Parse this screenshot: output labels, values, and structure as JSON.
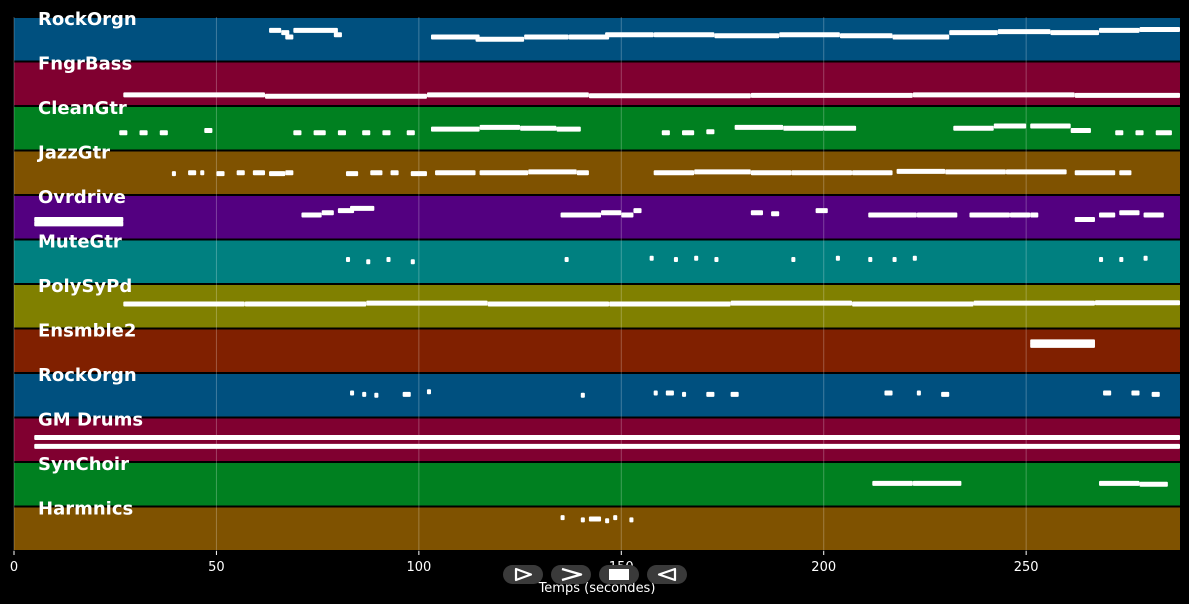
{
  "chart_data": {
    "type": "piano-roll",
    "xlabel": "Temps (secondes)",
    "xlim": [
      0,
      288
    ],
    "xticks": [
      0,
      50,
      100,
      150,
      200,
      250
    ],
    "grid": true,
    "tracks": [
      {
        "name": "RockOrgn",
        "color": "#00507f",
        "notes": [
          [
            63,
            3,
            0.3
          ],
          [
            66,
            2,
            0.35
          ],
          [
            67,
            2,
            0.45
          ],
          [
            69,
            11,
            0.3
          ],
          [
            79,
            2,
            0.4
          ],
          [
            103,
            12,
            0.45
          ],
          [
            114,
            12,
            0.5
          ],
          [
            126,
            11,
            0.45
          ],
          [
            137,
            6,
            0.45
          ],
          [
            138,
            9,
            0.45
          ],
          [
            146,
            12,
            0.4
          ],
          [
            158,
            15,
            0.4
          ],
          [
            173,
            16,
            0.42
          ],
          [
            189,
            15,
            0.4
          ],
          [
            204,
            13,
            0.42
          ],
          [
            217,
            14,
            0.45
          ],
          [
            231,
            12,
            0.35
          ],
          [
            243,
            13,
            0.33
          ],
          [
            256,
            12,
            0.35
          ],
          [
            268,
            10,
            0.3
          ],
          [
            278,
            10,
            0.28
          ]
        ]
      },
      {
        "name": "FngrBass",
        "color": "#800030",
        "notes": [
          [
            27,
            35,
            0.75
          ],
          [
            62,
            40,
            0.78
          ],
          [
            102,
            40,
            0.75
          ],
          [
            142,
            40,
            0.77
          ],
          [
            182,
            40,
            0.76
          ],
          [
            222,
            40,
            0.75
          ],
          [
            262,
            26,
            0.76
          ]
        ]
      },
      {
        "name": "CleanGtr",
        "color": "#008020",
        "notes": [
          [
            26,
            2,
            0.6
          ],
          [
            31,
            2,
            0.6
          ],
          [
            36,
            2,
            0.6
          ],
          [
            47,
            2,
            0.55
          ],
          [
            69,
            2,
            0.6
          ],
          [
            74,
            3,
            0.6
          ],
          [
            80,
            2,
            0.6
          ],
          [
            86,
            2,
            0.6
          ],
          [
            91,
            2,
            0.6
          ],
          [
            97,
            2,
            0.6
          ],
          [
            103,
            12,
            0.52
          ],
          [
            115,
            10,
            0.48
          ],
          [
            125,
            9,
            0.5
          ],
          [
            134,
            6,
            0.52
          ],
          [
            160,
            2,
            0.6
          ],
          [
            165,
            3,
            0.6
          ],
          [
            171,
            2,
            0.58
          ],
          [
            178,
            12,
            0.48
          ],
          [
            190,
            10,
            0.5
          ],
          [
            200,
            8,
            0.5
          ],
          [
            232,
            10,
            0.5
          ],
          [
            242,
            8,
            0.45
          ],
          [
            251,
            10,
            0.45
          ],
          [
            261,
            5,
            0.55
          ],
          [
            272,
            2,
            0.6
          ],
          [
            277,
            2,
            0.6
          ],
          [
            282,
            4,
            0.6
          ]
        ]
      },
      {
        "name": "JazzGtr",
        "color": "#7f5200",
        "notes": [
          [
            39,
            1,
            0.52
          ],
          [
            43,
            2,
            0.5
          ],
          [
            46,
            1,
            0.5
          ],
          [
            50,
            2,
            0.52
          ],
          [
            55,
            2,
            0.5
          ],
          [
            59,
            3,
            0.5
          ],
          [
            63,
            4,
            0.52
          ],
          [
            67,
            2,
            0.5
          ],
          [
            82,
            3,
            0.52
          ],
          [
            88,
            3,
            0.5
          ],
          [
            93,
            2,
            0.5
          ],
          [
            98,
            4,
            0.52
          ],
          [
            104,
            10,
            0.5
          ],
          [
            115,
            12,
            0.5
          ],
          [
            127,
            12,
            0.48
          ],
          [
            139,
            3,
            0.5
          ],
          [
            158,
            10,
            0.5
          ],
          [
            168,
            14,
            0.48
          ],
          [
            182,
            10,
            0.5
          ],
          [
            192,
            15,
            0.5
          ],
          [
            207,
            10,
            0.5
          ],
          [
            218,
            12,
            0.47
          ],
          [
            230,
            15,
            0.48
          ],
          [
            245,
            15,
            0.48
          ],
          [
            262,
            10,
            0.5
          ],
          [
            273,
            3,
            0.5
          ]
        ]
      },
      {
        "name": "Ovrdrive",
        "color": "#530080",
        "notes": [
          [
            5,
            22,
            0.55
          ],
          [
            5,
            22,
            0.65
          ],
          [
            71,
            5,
            0.45
          ],
          [
            76,
            3,
            0.4
          ],
          [
            80,
            4,
            0.35
          ],
          [
            83,
            6,
            0.3
          ],
          [
            135,
            10,
            0.45
          ],
          [
            145,
            5,
            0.4
          ],
          [
            150,
            3,
            0.45
          ],
          [
            153,
            2,
            0.35
          ],
          [
            182,
            3,
            0.4
          ],
          [
            187,
            2,
            0.42
          ],
          [
            198,
            3,
            0.35
          ],
          [
            211,
            12,
            0.45
          ],
          [
            223,
            10,
            0.45
          ],
          [
            236,
            10,
            0.45
          ],
          [
            246,
            5,
            0.45
          ],
          [
            251,
            2,
            0.45
          ],
          [
            262,
            5,
            0.55
          ],
          [
            268,
            4,
            0.45
          ],
          [
            273,
            5,
            0.4
          ],
          [
            279,
            5,
            0.45
          ]
        ]
      },
      {
        "name": "MuteGtr",
        "color": "#008080",
        "notes": [
          [
            82,
            1,
            0.45
          ],
          [
            87,
            1,
            0.5
          ],
          [
            92,
            1,
            0.45
          ],
          [
            98,
            1,
            0.5
          ],
          [
            136,
            1,
            0.45
          ],
          [
            157,
            1,
            0.42
          ],
          [
            163,
            1,
            0.45
          ],
          [
            168,
            1,
            0.42
          ],
          [
            173,
            1,
            0.45
          ],
          [
            192,
            1,
            0.45
          ],
          [
            203,
            1,
            0.42
          ],
          [
            211,
            1,
            0.45
          ],
          [
            217,
            1,
            0.45
          ],
          [
            222,
            1,
            0.42
          ],
          [
            268,
            1,
            0.45
          ],
          [
            273,
            1,
            0.45
          ],
          [
            279,
            1,
            0.42
          ]
        ]
      },
      {
        "name": "PolySyPd",
        "color": "#808000",
        "notes": [
          [
            27,
            30,
            0.45
          ],
          [
            57,
            30,
            0.45
          ],
          [
            87,
            30,
            0.43
          ],
          [
            117,
            30,
            0.45
          ],
          [
            147,
            30,
            0.45
          ],
          [
            177,
            30,
            0.43
          ],
          [
            207,
            30,
            0.45
          ],
          [
            237,
            30,
            0.43
          ],
          [
            267,
            21,
            0.42
          ]
        ]
      },
      {
        "name": "Ensmble2",
        "color": "#802000",
        "notes": [
          [
            251,
            16,
            0.3
          ],
          [
            251,
            16,
            0.38
          ]
        ]
      },
      {
        "name": "RockOrgn",
        "color": "#00507f",
        "notes": [
          [
            83,
            1,
            0.45
          ],
          [
            86,
            1,
            0.48
          ],
          [
            89,
            1,
            0.5
          ],
          [
            96,
            2,
            0.48
          ],
          [
            102,
            1,
            0.42
          ],
          [
            140,
            1,
            0.5
          ],
          [
            158,
            1,
            0.45
          ],
          [
            161,
            2,
            0.45
          ],
          [
            165,
            1,
            0.48
          ],
          [
            171,
            2,
            0.48
          ],
          [
            177,
            2,
            0.48
          ],
          [
            215,
            2,
            0.45
          ],
          [
            223,
            1,
            0.45
          ],
          [
            229,
            2,
            0.48
          ],
          [
            269,
            2,
            0.45
          ],
          [
            276,
            2,
            0.45
          ],
          [
            281,
            2,
            0.48
          ]
        ]
      },
      {
        "name": "GM Drums",
        "color": "#800030",
        "notes": [
          [
            5,
            283,
            0.45
          ],
          [
            5,
            283,
            0.65
          ]
        ]
      },
      {
        "name": "SynChoir",
        "color": "#008020",
        "notes": [
          [
            212,
            10,
            0.48
          ],
          [
            222,
            12,
            0.48
          ],
          [
            268,
            10,
            0.48
          ],
          [
            278,
            7,
            0.5
          ]
        ]
      },
      {
        "name": "Harmnics",
        "color": "#7f5200",
        "notes": [
          [
            135,
            1,
            0.25
          ],
          [
            140,
            1,
            0.3
          ],
          [
            142,
            3,
            0.28
          ],
          [
            146,
            1,
            0.32
          ],
          [
            148,
            1,
            0.25
          ],
          [
            152,
            1,
            0.3
          ]
        ]
      }
    ]
  },
  "controls": {
    "icons": [
      "play-icon",
      "fast-forward-icon",
      "stop-icon",
      "rewind-icon"
    ]
  }
}
